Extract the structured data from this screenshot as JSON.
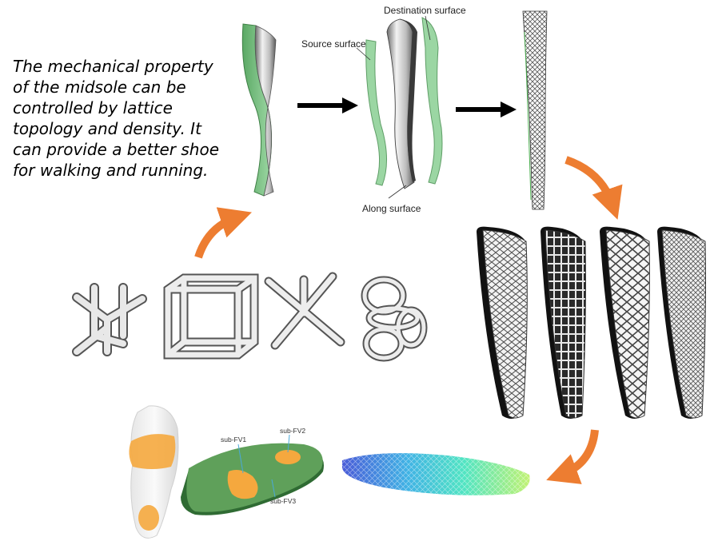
{
  "description": "The mechanical property of the midsole can be controlled by lattice topology and density. It can provide a better shoe for walking and running.",
  "labels": {
    "destination_surface": "Destination surface",
    "source_surface": "Source surface",
    "along_surface": "Along surface",
    "sub_fv1": "sub-FV1",
    "sub_fv2": "sub-FV2",
    "sub_fv3": "sub-FV3"
  },
  "colors": {
    "arrow_orange": "#ED7D31",
    "arrow_black": "#000000",
    "surface_green": "#93D39C",
    "insole_green": "#4E8B4A",
    "pressure_orange": "#F5A83E"
  },
  "lattice_cells": [
    "interlocked-lattice-icon",
    "cube-lattice-icon",
    "x-cross-lattice-icon",
    "ring-lattice-icon"
  ],
  "midsole_variants": [
    "hex-lattice-midsole",
    "grid-lattice-midsole",
    "diamond-lattice-midsole",
    "fine-lattice-midsole"
  ]
}
